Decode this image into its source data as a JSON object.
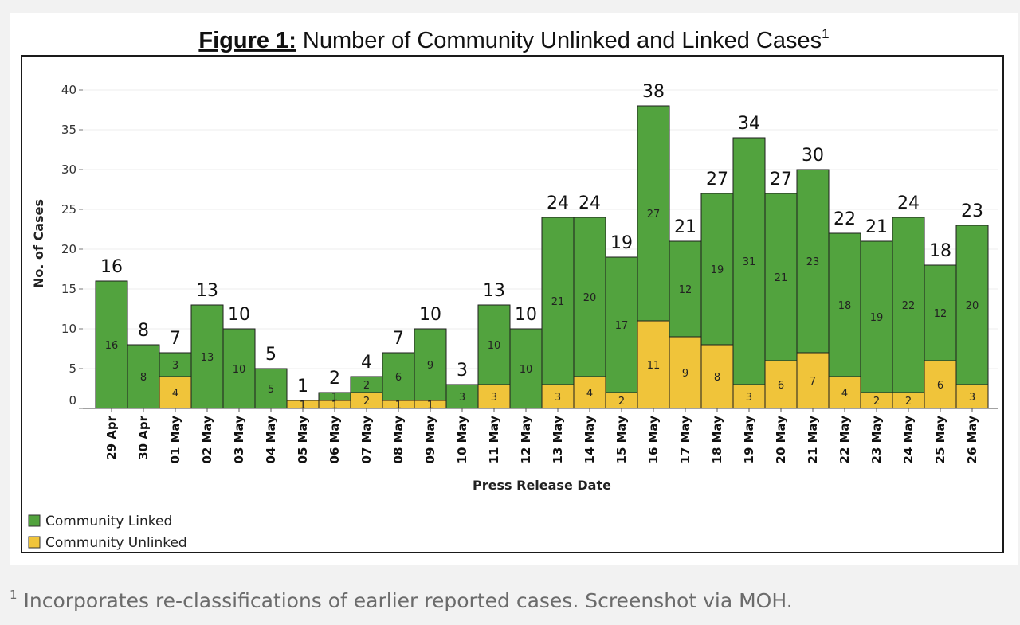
{
  "figure": {
    "title_prefix": "Figure 1:",
    "title_main": " Number of Community Unlinked and Linked Cases",
    "title_sup": "1"
  },
  "footnote": {
    "marker": "1",
    "text": " Incorporates re-classifications of earlier reported cases. Screenshot via MOH."
  },
  "colors": {
    "linked": "#52a33e",
    "unlinked": "#f0c43a",
    "bar_edge": "#1e1e1e",
    "grid": "#ececec"
  },
  "chart_data": {
    "type": "bar",
    "stacked": true,
    "xlabel": "Press Release Date",
    "ylabel": "No. of Cases",
    "ylim": [
      0,
      42
    ],
    "yticks": [
      0,
      5,
      10,
      15,
      20,
      25,
      30,
      35,
      40
    ],
    "grid": true,
    "legend_position": "bottom-left",
    "categories": [
      "29 Apr",
      "30 Apr",
      "01 May",
      "02 May",
      "03 May",
      "04 May",
      "05 May",
      "06 May",
      "07 May",
      "08 May",
      "09 May",
      "10 May",
      "11 May",
      "12 May",
      "13 May",
      "14 May",
      "15 May",
      "16 May",
      "17 May",
      "18 May",
      "19 May",
      "20 May",
      "21 May",
      "22 May",
      "23 May",
      "24 May",
      "25 May",
      "26 May"
    ],
    "series": [
      {
        "name": "Community Unlinked",
        "color_key": "unlinked",
        "values": [
          0,
          0,
          4,
          0,
          0,
          0,
          1,
          1,
          2,
          1,
          1,
          0,
          3,
          0,
          3,
          4,
          2,
          11,
          9,
          8,
          3,
          6,
          7,
          4,
          2,
          2,
          6,
          3
        ]
      },
      {
        "name": "Community Linked",
        "color_key": "linked",
        "values": [
          16,
          8,
          3,
          13,
          10,
          5,
          0,
          1,
          2,
          6,
          9,
          3,
          10,
          10,
          21,
          20,
          17,
          27,
          12,
          19,
          31,
          21,
          23,
          18,
          19,
          22,
          12,
          20
        ]
      }
    ],
    "totals": [
      16,
      8,
      7,
      13,
      10,
      5,
      1,
      2,
      4,
      7,
      10,
      3,
      13,
      10,
      24,
      24,
      19,
      38,
      21,
      27,
      34,
      27,
      30,
      22,
      21,
      24,
      18,
      23
    ],
    "legend_order": [
      "Community Linked",
      "Community Unlinked"
    ]
  }
}
